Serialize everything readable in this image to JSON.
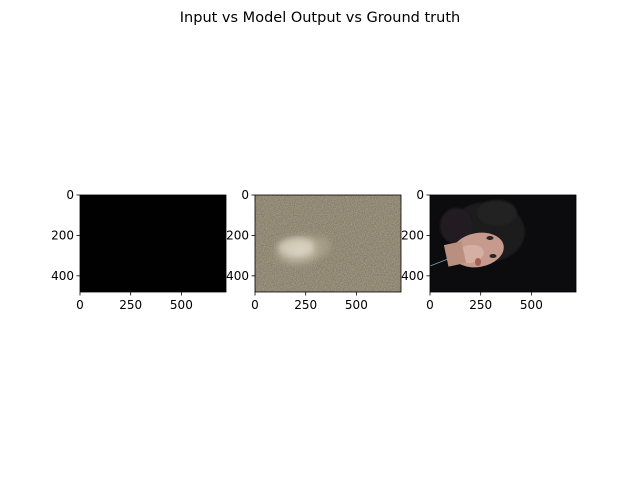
{
  "figure": {
    "title": "Input vs Model Output vs Ground truth"
  },
  "chart_data": [
    {
      "type": "image",
      "panel": "input",
      "xlim": [
        0,
        720
      ],
      "ylim": [
        480,
        0
      ],
      "xticks": [
        0,
        250,
        500
      ],
      "yticks": [
        0,
        200,
        400
      ],
      "content": "near-black image",
      "background_color": "#020101"
    },
    {
      "type": "image",
      "panel": "model-output",
      "xlim": [
        0,
        720
      ],
      "ylim": [
        480,
        0
      ],
      "xticks": [
        0,
        250,
        500
      ],
      "yticks": [
        0,
        200,
        400
      ],
      "content": "noisy brown-gray image with a blurry pale face-shaped blob",
      "background_color": "#4a4235"
    },
    {
      "type": "image",
      "panel": "ground-truth",
      "xlim": [
        0,
        720
      ],
      "ylim": [
        480,
        0
      ],
      "xticks": [
        0,
        250,
        500
      ],
      "yticks": [
        0,
        200,
        400
      ],
      "content": "dark photo of a doll head with dark curly hair lying sideways",
      "background_color": "#0c0c0e"
    }
  ]
}
